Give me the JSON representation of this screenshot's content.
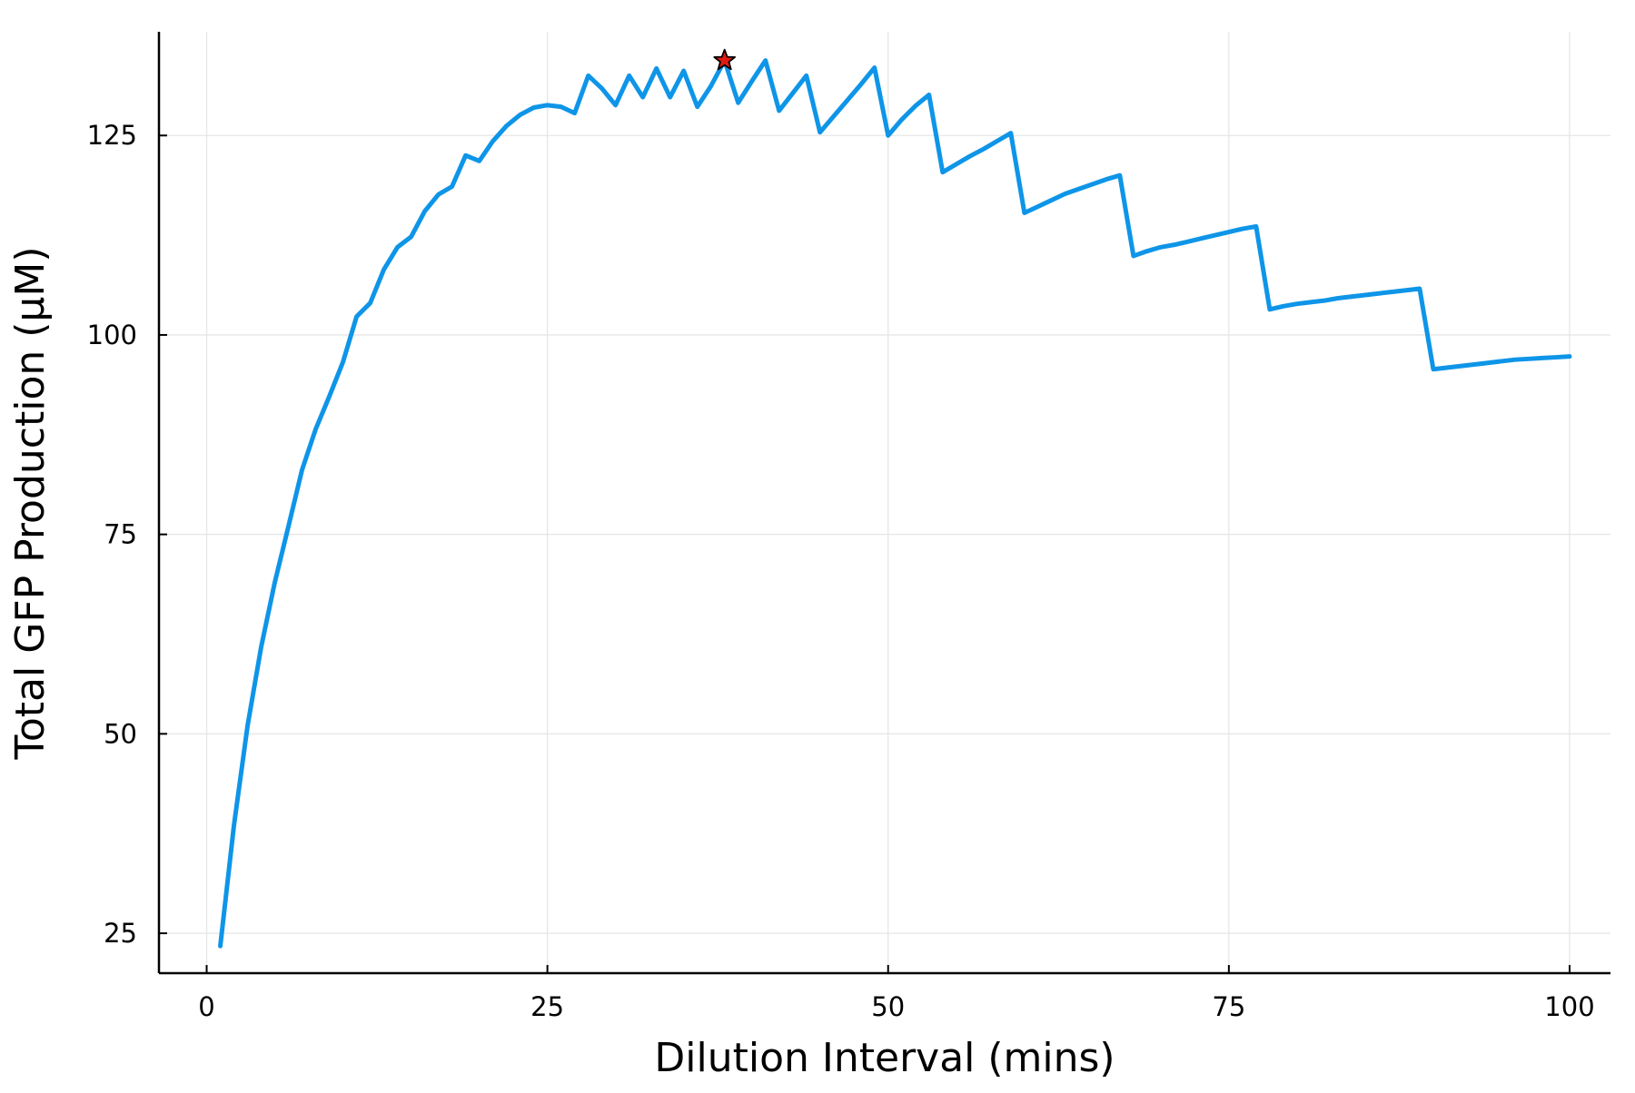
{
  "chart_data": {
    "type": "line",
    "xlabel": "Dilution Interval (mins)",
    "ylabel": "Total GFP Production (μM)",
    "xlim": [
      -3.5,
      103
    ],
    "ylim": [
      20,
      138
    ],
    "x_ticks": [
      0,
      25,
      50,
      75,
      100
    ],
    "y_ticks": [
      25,
      50,
      75,
      100,
      125
    ],
    "x_tick_labels": [
      "0",
      "25",
      "50",
      "75",
      "100"
    ],
    "y_tick_labels": [
      "25",
      "50",
      "75",
      "100",
      "125"
    ],
    "grid": true,
    "legend": "none",
    "series": [
      {
        "color": "#0e95e8",
        "x": [
          1,
          2,
          3,
          4,
          5,
          6,
          7,
          8,
          9,
          10,
          11,
          12,
          13,
          14,
          15,
          16,
          17,
          18,
          19,
          20,
          21,
          22,
          23,
          24,
          25,
          26,
          27,
          28,
          29,
          30,
          31,
          32,
          33,
          34,
          35,
          36,
          37,
          38,
          39,
          40,
          41,
          42,
          43,
          44,
          45,
          46,
          47,
          48,
          49,
          50,
          51,
          52,
          53,
          54,
          55,
          56,
          57,
          58,
          59,
          60,
          61,
          62,
          63,
          64,
          65,
          66,
          67,
          68,
          69,
          70,
          71,
          72,
          73,
          74,
          75,
          76,
          77,
          78,
          79,
          80,
          81,
          82,
          83,
          84,
          85,
          86,
          87,
          88,
          89,
          90,
          91,
          92,
          93,
          94,
          95,
          96,
          97,
          98,
          99,
          100
        ],
        "y": [
          23.4,
          38.5,
          51.0,
          60.9,
          69.0,
          76.0,
          83.1,
          88.2,
          92.3,
          96.6,
          102.3,
          104.0,
          108.2,
          111.0,
          112.3,
          115.5,
          117.6,
          118.6,
          122.5,
          121.8,
          124.3,
          126.2,
          127.6,
          128.5,
          128.8,
          128.6,
          127.8,
          132.5,
          130.9,
          128.8,
          132.5,
          129.8,
          133.4,
          129.8,
          133.1,
          128.6,
          131.2,
          134.4,
          129.1,
          131.8,
          134.4,
          128.1,
          130.3,
          132.5,
          125.4,
          127.4,
          129.4,
          131.4,
          133.5,
          125.0,
          127.0,
          128.7,
          130.1,
          120.4,
          121.4,
          122.4,
          123.3,
          124.3,
          125.3,
          115.3,
          116.1,
          116.9,
          117.7,
          118.3,
          118.9,
          119.5,
          120.0,
          109.9,
          110.5,
          111.0,
          111.3,
          111.7,
          112.1,
          112.5,
          112.9,
          113.3,
          113.6,
          103.2,
          103.6,
          103.9,
          104.1,
          104.3,
          104.6,
          104.8,
          105.0,
          105.2,
          105.4,
          105.6,
          105.8,
          95.7,
          95.9,
          96.1,
          96.3,
          96.5,
          96.7,
          96.9,
          97.0,
          97.1,
          97.2,
          97.3
        ]
      }
    ],
    "markers": [
      {
        "x": 38,
        "y": 134.4,
        "shape": "star",
        "color": "#e11a12"
      }
    ]
  }
}
